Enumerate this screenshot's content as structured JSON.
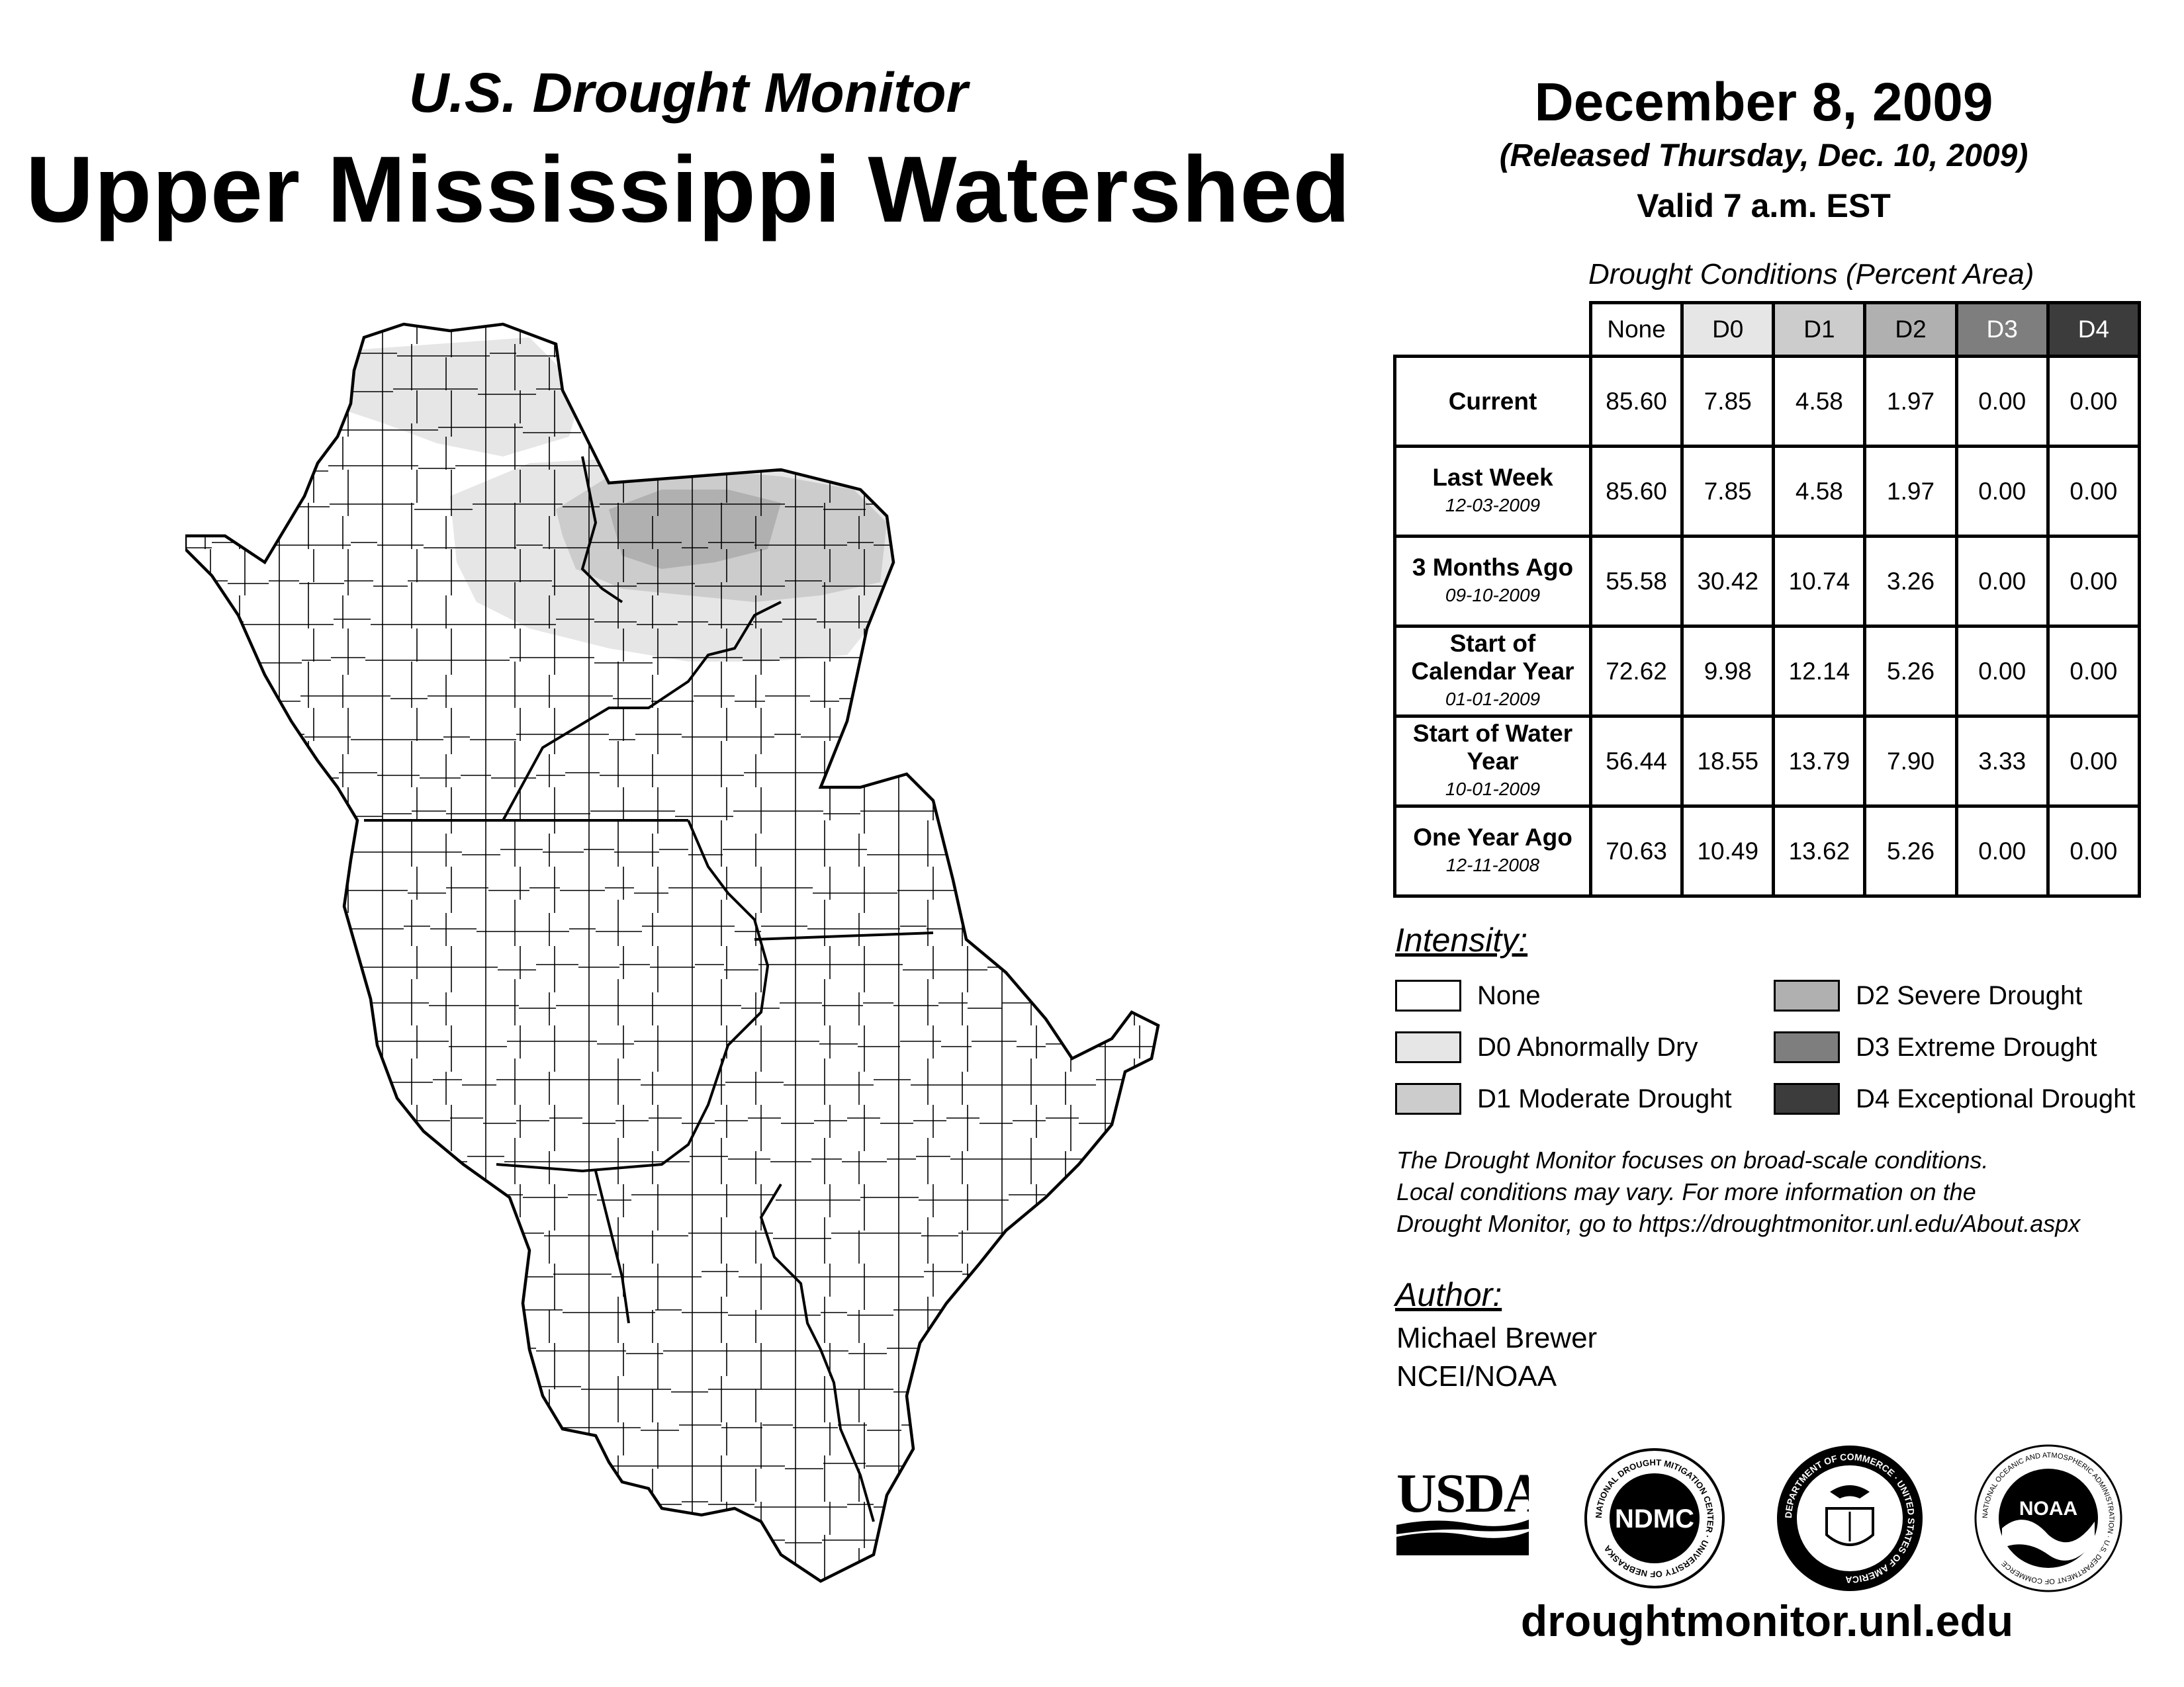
{
  "header": {
    "subtitle": "U.S. Drought Monitor",
    "title": "Upper Mississippi Watershed",
    "date": "December 8, 2009",
    "released": "(Released Thursday, Dec. 10, 2009)",
    "valid": "Valid 7 a.m. EST"
  },
  "table": {
    "caption": "Drought Conditions (Percent Area)",
    "columns": [
      "None",
      "D0",
      "D1",
      "D2",
      "D3",
      "D4"
    ],
    "rows": [
      {
        "label": "Current",
        "date": "",
        "values": [
          "85.60",
          "7.85",
          "4.58",
          "1.97",
          "0.00",
          "0.00"
        ]
      },
      {
        "label": "Last Week",
        "date": "12-03-2009",
        "values": [
          "85.60",
          "7.85",
          "4.58",
          "1.97",
          "0.00",
          "0.00"
        ]
      },
      {
        "label": "3 Months Ago",
        "date": "09-10-2009",
        "values": [
          "55.58",
          "30.42",
          "10.74",
          "3.26",
          "0.00",
          "0.00"
        ]
      },
      {
        "label": "Start of Calendar Year",
        "date": "01-01-2009",
        "values": [
          "72.62",
          "9.98",
          "12.14",
          "5.26",
          "0.00",
          "0.00"
        ]
      },
      {
        "label": "Start of Water Year",
        "date": "10-01-2009",
        "values": [
          "56.44",
          "18.55",
          "13.79",
          "7.90",
          "3.33",
          "0.00"
        ]
      },
      {
        "label": "One Year Ago",
        "date": "12-11-2008",
        "values": [
          "70.63",
          "10.49",
          "13.62",
          "5.26",
          "0.00",
          "0.00"
        ]
      }
    ]
  },
  "legend": {
    "title": "Intensity:",
    "items": [
      {
        "label": "None",
        "color": "#ffffff"
      },
      {
        "label": "D0 Abnormally Dry",
        "color": "#e6e6e6"
      },
      {
        "label": "D1 Moderate Drought",
        "color": "#cccccc"
      },
      {
        "label": "D2 Severe Drought",
        "color": "#b0b0b0"
      },
      {
        "label": "D3 Extreme Drought",
        "color": "#7e7e7e"
      },
      {
        "label": "D4 Exceptional Drought",
        "color": "#3c3c3c"
      }
    ]
  },
  "note": {
    "line1": "The Drought Monitor focuses on broad-scale conditions.",
    "line2": "Local conditions may vary. For more information on the",
    "line3": "Drought Monitor, go to https://droughtmonitor.unl.edu/About.aspx"
  },
  "author": {
    "title": "Author:",
    "name": "Michael Brewer",
    "org": "NCEI/NOAA"
  },
  "logos": {
    "usda": "USDA",
    "ndmc": "NDMC",
    "ndmc_ring": "NATIONAL DROUGHT MITIGATION CENTER · UNIVERSITY OF NEBRASKA",
    "doc_ring": "DEPARTMENT OF COMMERCE · UNITED STATES OF AMERICA",
    "noaa": "NOAA",
    "noaa_ring": "NATIONAL OCEANIC AND ATMOSPHERIC ADMINISTRATION · U.S. DEPARTMENT OF COMMERCE"
  },
  "footer": {
    "website": "droughtmonitor.unl.edu"
  }
}
